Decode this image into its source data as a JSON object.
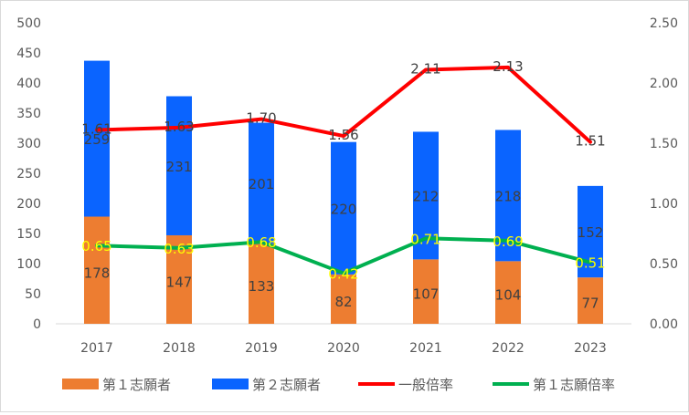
{
  "chart_data": {
    "type": "bar+line",
    "categories": [
      "2017",
      "2018",
      "2019",
      "2020",
      "2021",
      "2022",
      "2023"
    ],
    "series": [
      {
        "name": "第１志願者",
        "kind": "stacked-bar",
        "axis": "left",
        "color": "#ed7d31",
        "values": [
          178,
          147,
          133,
          82,
          107,
          104,
          77
        ]
      },
      {
        "name": "第２志願者",
        "kind": "stacked-bar",
        "axis": "left",
        "color": "#0a64ff",
        "values": [
          259,
          231,
          201,
          220,
          212,
          218,
          152
        ]
      },
      {
        "name": "一般倍率",
        "kind": "line",
        "axis": "right",
        "color": "#ff0000",
        "values": [
          1.61,
          1.63,
          1.7,
          1.56,
          2.11,
          2.13,
          1.51
        ]
      },
      {
        "name": "第１志願倍率",
        "kind": "line",
        "axis": "right",
        "color": "#00b050",
        "values": [
          0.65,
          0.63,
          0.68,
          0.42,
          0.71,
          0.69,
          0.51
        ]
      }
    ],
    "left_axis": {
      "min": 0,
      "max": 500,
      "step": 50,
      "ticks": [
        "0",
        "50",
        "100",
        "150",
        "200",
        "250",
        "300",
        "350",
        "400",
        "450",
        "500"
      ]
    },
    "right_axis": {
      "min": 0,
      "max": 2.5,
      "step": 0.5,
      "ticks": [
        "0.00",
        "0.50",
        "1.00",
        "1.50",
        "2.00",
        "2.50"
      ]
    },
    "grid": false,
    "legend_position": "bottom",
    "label_colors": {
      "bar": "#404040",
      "first_ratio": "#ffff00",
      "general_ratio": "#404040"
    }
  }
}
